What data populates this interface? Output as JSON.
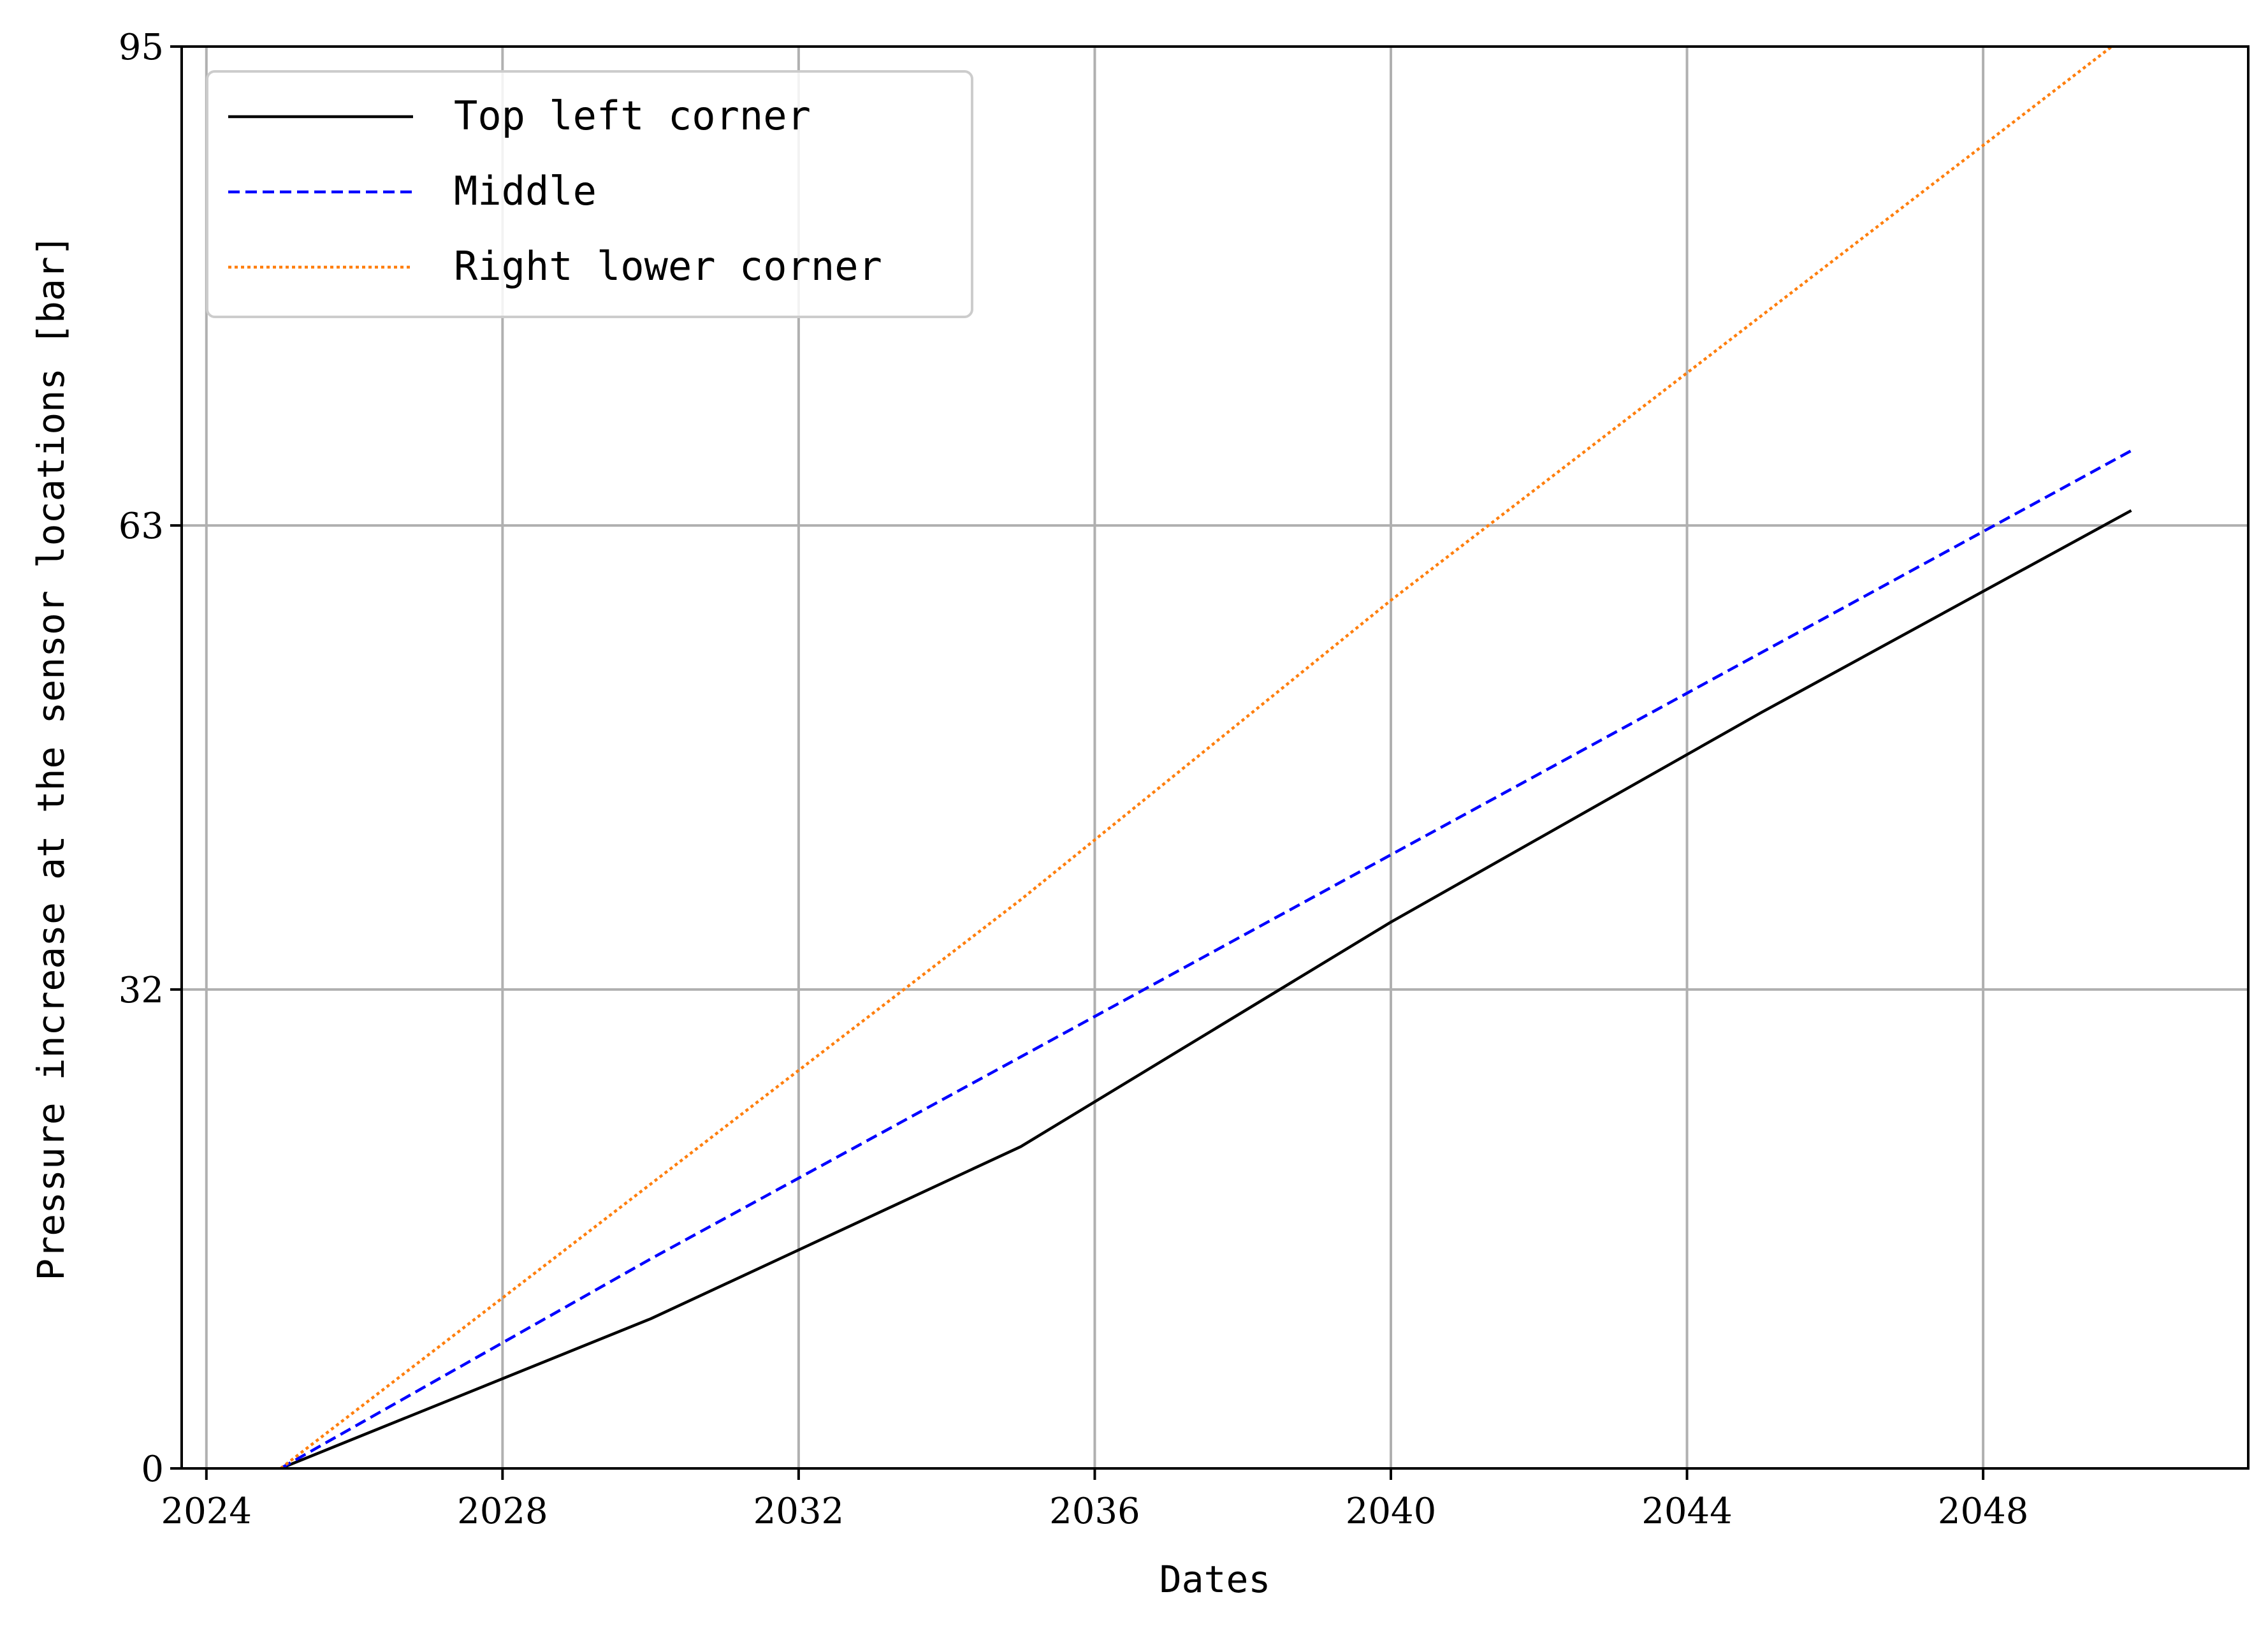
{
  "chart_data": {
    "type": "line",
    "xlabel": "Dates",
    "ylabel": "Pressure increase at the sensor locations [bar]",
    "x_type": "date",
    "xlim": [
      "2023-09-01",
      "2051-08-01"
    ],
    "ylim": [
      0,
      95
    ],
    "x_ticks": [
      {
        "value": "2024-01-01",
        "label": "2024"
      },
      {
        "value": "2028-01-01",
        "label": "2028"
      },
      {
        "value": "2032-01-01",
        "label": "2032"
      },
      {
        "value": "2036-01-01",
        "label": "2036"
      },
      {
        "value": "2040-01-01",
        "label": "2040"
      },
      {
        "value": "2044-01-01",
        "label": "2044"
      },
      {
        "value": "2048-01-01",
        "label": "2048"
      }
    ],
    "y_ticks": [
      0,
      32,
      63,
      95
    ],
    "grid": true,
    "legend_position": "top-left",
    "series": [
      {
        "name": "Top left corner",
        "color": "#000000",
        "dash": "solid",
        "x": [
          "2025-01-01",
          "2030-01-01",
          "2035-01-01",
          "2040-01-01",
          "2045-01-01",
          "2050-01-01"
        ],
        "y": [
          0,
          10,
          21.5,
          36.5,
          50.5,
          64
        ]
      },
      {
        "name": "Middle",
        "color": "#0000ff",
        "dash": "dashed",
        "x": [
          "2025-01-01",
          "2030-01-01",
          "2035-01-01",
          "2040-01-01",
          "2045-01-01",
          "2050-01-01"
        ],
        "y": [
          0,
          14,
          27.5,
          41,
          54.5,
          68
        ]
      },
      {
        "name": "Right lower corner",
        "color": "#ff7f0e",
        "dash": "dotted",
        "x": [
          "2025-01-01",
          "2030-01-01",
          "2035-01-01",
          "2040-01-01",
          "2045-01-01",
          "2050-01-01"
        ],
        "y": [
          0,
          19,
          38,
          58,
          77,
          96
        ]
      }
    ]
  }
}
